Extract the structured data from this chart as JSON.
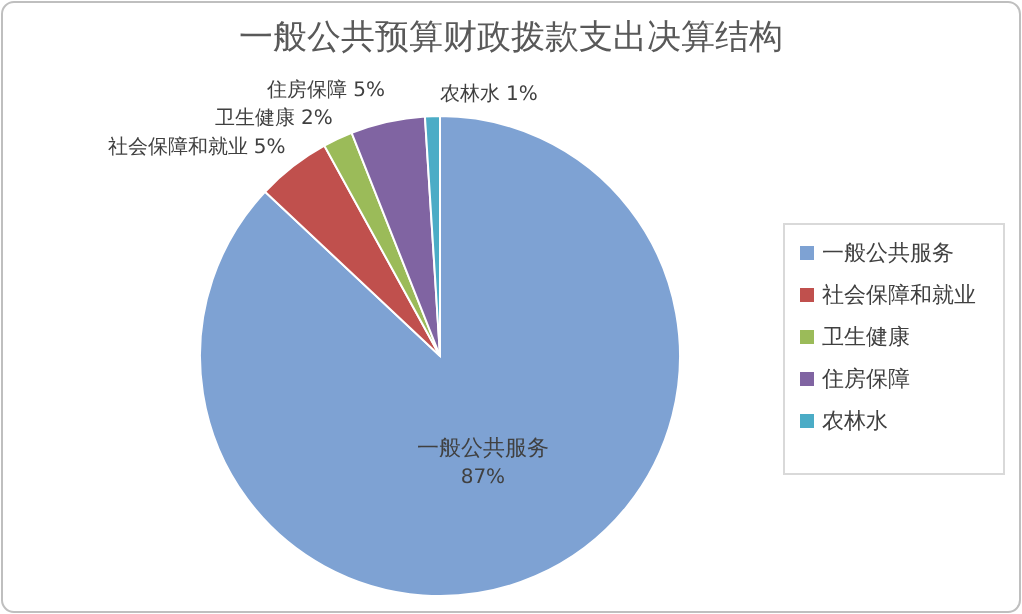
{
  "chart_data": {
    "type": "pie",
    "title": "一般公共预算财政拨款支出决算结构",
    "categories": [
      "一般公共服务",
      "社会保障和就业",
      "卫生健康",
      "住房保障",
      "农林水"
    ],
    "values": [
      87,
      5,
      2,
      5,
      1
    ],
    "value_labels": [
      "87%",
      "5%",
      "2%",
      "5%",
      "1%"
    ],
    "colors": [
      "#7ea2d3",
      "#c0504d",
      "#9bbb59",
      "#8064a2",
      "#4bacc6"
    ],
    "legend": "right"
  }
}
